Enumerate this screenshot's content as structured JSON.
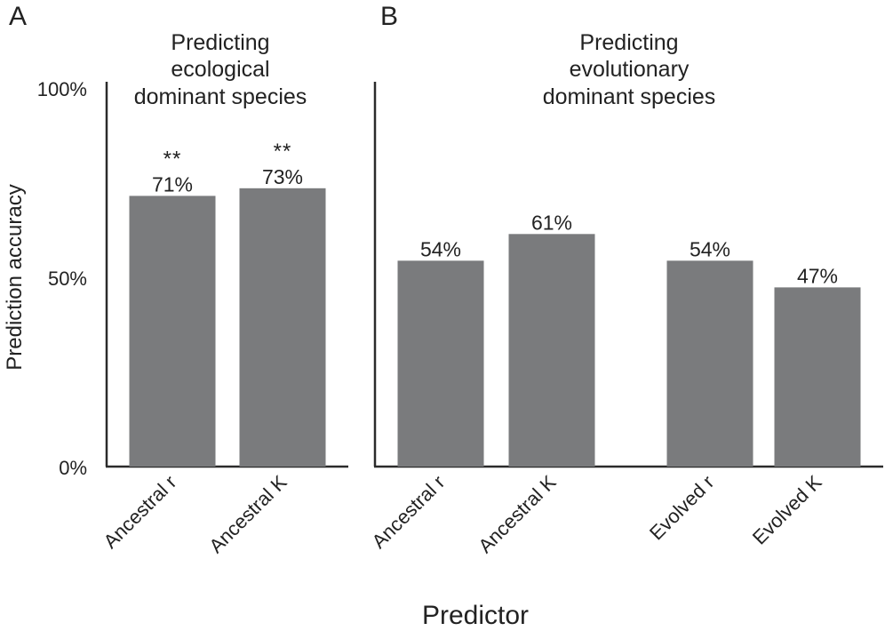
{
  "chart_data": [
    {
      "type": "bar",
      "panel": "A",
      "title": "Predicting ecological dominant species",
      "title_lines": [
        "Predicting",
        "ecological",
        "dominant species"
      ],
      "categories": [
        "Ancestral r",
        "Ancestral K"
      ],
      "values": [
        71,
        73
      ],
      "data_labels": [
        "71%",
        "73%"
      ],
      "significance": [
        "**",
        "**"
      ],
      "ylim": [
        0,
        100
      ],
      "yticks": [
        "0%",
        "50%",
        "100%"
      ],
      "ylabel": "Prediction accuracy",
      "bar_color": "#7a7b7d"
    },
    {
      "type": "bar",
      "panel": "B",
      "title": "Predicting evolutionary dominant species",
      "title_lines": [
        "Predicting",
        "evolutionary",
        "dominant species"
      ],
      "categories": [
        "Ancestral r",
        "Ancestral K",
        "Evolved r",
        "Evolved K"
      ],
      "values": [
        54,
        61,
        54,
        47
      ],
      "data_labels": [
        "54%",
        "61%",
        "54%",
        "47%"
      ],
      "significance": [
        "",
        "",
        "",
        ""
      ],
      "ylim": [
        0,
        100
      ],
      "bar_color": "#7a7b7d"
    }
  ],
  "xlabel": "Predictor"
}
